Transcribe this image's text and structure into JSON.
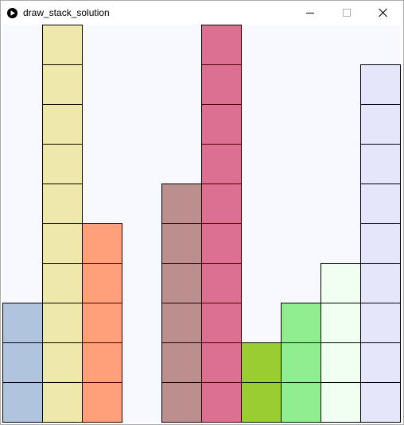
{
  "window": {
    "title": "draw_stack_solution"
  },
  "icons": {
    "app": "play-icon",
    "minimize": "minimize-icon",
    "maximize": "maximize-icon",
    "close": "close-icon"
  },
  "canvas": {
    "background": "#f8f8ff",
    "stroke": "#000000"
  },
  "stacks": [
    {
      "column": 0,
      "count": 3,
      "color": "#b0c4de"
    },
    {
      "column": 1,
      "count": 10,
      "color": "#eee8aa"
    },
    {
      "column": 2,
      "count": 5,
      "color": "#ffa07a"
    },
    {
      "column": 3,
      "count": 0,
      "color": "#f8f8ff"
    },
    {
      "column": 4,
      "count": 6,
      "color": "#bc8f8f"
    },
    {
      "column": 5,
      "count": 10,
      "color": "#db7093"
    },
    {
      "column": 6,
      "count": 2,
      "color": "#9acd32"
    },
    {
      "column": 7,
      "count": 3,
      "color": "#90ee90"
    },
    {
      "column": 8,
      "count": 4,
      "color": "#f0fff0"
    },
    {
      "column": 9,
      "count": 9,
      "color": "#e6e6fa"
    }
  ]
}
